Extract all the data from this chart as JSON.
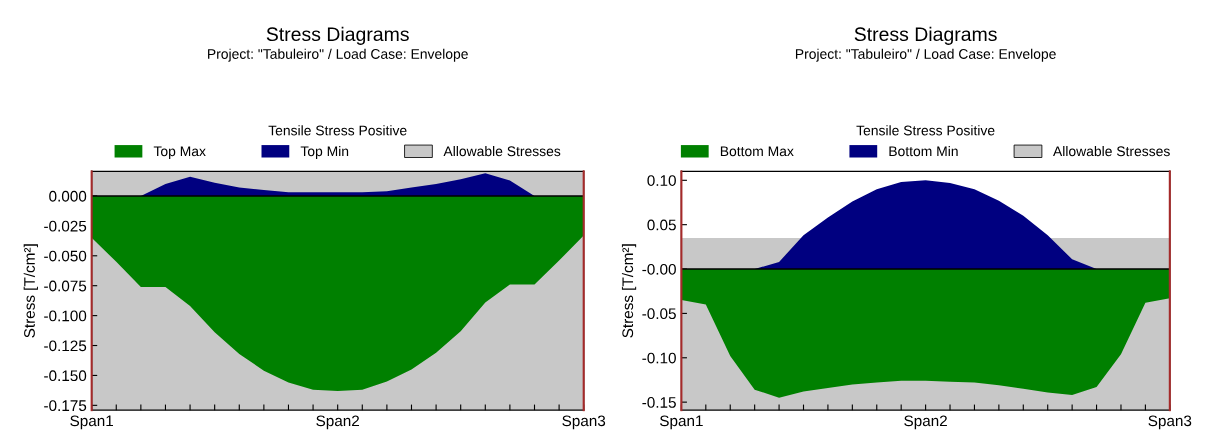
{
  "chart_data": [
    {
      "type": "area",
      "title": "Stress Diagrams",
      "subtitle": "Project: \"Tabuleiro\" / Load Case: Envelope",
      "legend_title": "Tensile Stress Positive",
      "ylabel": "Stress [T/cm²]",
      "legend": "top",
      "grid": false,
      "categories": [
        "Span1",
        null,
        null,
        null,
        null,
        null,
        null,
        null,
        null,
        null,
        "Span2",
        null,
        null,
        null,
        null,
        null,
        null,
        null,
        null,
        null,
        "Span3"
      ],
      "ylim": [
        -0.179,
        0.0205
      ],
      "yticks": [
        {
          "value": 0,
          "label": "0.000"
        },
        {
          "value": -0.025,
          "label": "-0.025"
        },
        {
          "value": -0.05,
          "label": "-0.050"
        },
        {
          "value": -0.075,
          "label": "-0.075"
        },
        {
          "value": -0.1,
          "label": "-0.100"
        },
        {
          "value": -0.125,
          "label": "-0.125"
        },
        {
          "value": -0.15,
          "label": "-0.150"
        },
        {
          "value": -0.175,
          "label": "-0.175"
        }
      ],
      "bands": [
        {
          "axis": "y",
          "from": -0.179,
          "to": 0.0205,
          "label": "Allowable Stresses",
          "color": "#c8c8c8"
        }
      ],
      "ref_lines": [
        {
          "axis": "y",
          "value": 0,
          "color": "#000000"
        },
        {
          "axis": "x",
          "value": "Span1",
          "color": "#a52a2a"
        },
        {
          "axis": "x",
          "value": "Span3",
          "color": "#a52a2a"
        }
      ],
      "series": [
        {
          "name": "Top Max",
          "color": "#008000",
          "values": [
            -0.035,
            -0.055,
            -0.076,
            -0.076,
            -0.092,
            -0.114,
            -0.132,
            -0.146,
            -0.156,
            -0.162,
            -0.163,
            -0.162,
            -0.155,
            -0.145,
            -0.131,
            -0.113,
            -0.089,
            -0.074,
            -0.074,
            -0.054,
            -0.033
          ]
        },
        {
          "name": "Top Min",
          "color": "#000080",
          "values": [
            0,
            0,
            0,
            0.01,
            0.016,
            0.011,
            0.007,
            0.005,
            0.003,
            0.003,
            0.003,
            0.003,
            0.004,
            0.007,
            0.01,
            0.014,
            0.019,
            0.013,
            0,
            0,
            0
          ]
        }
      ]
    },
    {
      "type": "area",
      "title": "Stress Diagrams",
      "subtitle": "Project: \"Tabuleiro\" / Load Case: Envelope",
      "legend_title": "Tensile Stress Positive",
      "ylabel": "Stress [T/cm²]",
      "legend": "top",
      "grid": false,
      "categories": [
        "Span1",
        null,
        null,
        null,
        null,
        null,
        null,
        null,
        null,
        null,
        "Span2",
        null,
        null,
        null,
        null,
        null,
        null,
        null,
        null,
        null,
        "Span3"
      ],
      "ylim": [
        -0.159,
        0.11
      ],
      "yticks": [
        {
          "value": 0.1,
          "label": "0.10"
        },
        {
          "value": 0.05,
          "label": "0.05"
        },
        {
          "value": 0,
          "label": "-0.00"
        },
        {
          "value": -0.05,
          "label": "-0.05"
        },
        {
          "value": -0.1,
          "label": "-0.10"
        },
        {
          "value": -0.15,
          "label": "-0.15"
        }
      ],
      "bands": [
        {
          "axis": "y",
          "from": -0.159,
          "to": 0.035,
          "label": "Allowable Stresses",
          "color": "#c8c8c8"
        }
      ],
      "ref_lines": [
        {
          "axis": "y",
          "value": 0,
          "color": "#000000"
        },
        {
          "axis": "x",
          "value": "Span1",
          "color": "#a52a2a"
        },
        {
          "axis": "x",
          "value": "Span3",
          "color": "#a52a2a"
        }
      ],
      "series": [
        {
          "name": "Bottom Max",
          "color": "#008000",
          "values": [
            -0.035,
            -0.04,
            -0.098,
            -0.136,
            -0.145,
            -0.138,
            -0.134,
            -0.13,
            -0.128,
            -0.126,
            -0.126,
            -0.127,
            -0.128,
            -0.131,
            -0.135,
            -0.139,
            -0.142,
            -0.133,
            -0.096,
            -0.038,
            -0.033
          ]
        },
        {
          "name": "Bottom Min",
          "color": "#000080",
          "values": [
            0,
            0,
            0,
            0,
            0.008,
            0.038,
            0.058,
            0.076,
            0.09,
            0.098,
            0.1,
            0.097,
            0.09,
            0.077,
            0.06,
            0.038,
            0.011,
            0,
            0,
            0,
            0
          ]
        }
      ]
    }
  ]
}
